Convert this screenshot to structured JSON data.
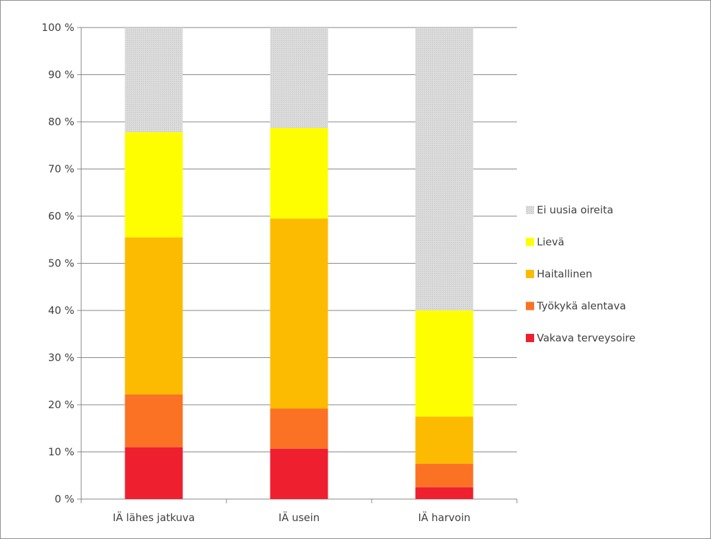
{
  "chart_data": {
    "type": "bar",
    "stacked": true,
    "percent": true,
    "categories": [
      "IÄ lähes jatkuva",
      "IÄ usein",
      "IÄ harvoin"
    ],
    "series": [
      {
        "name": "Vakava terveysoire",
        "color": "#ee2030",
        "values": [
          11.0,
          10.7,
          2.5
        ]
      },
      {
        "name": "Työkykä alentava",
        "color": "#fb7224",
        "values": [
          11.2,
          8.5,
          5.0
        ]
      },
      {
        "name": "Haitallinen",
        "color": "#fcbb00",
        "values": [
          33.3,
          40.3,
          10.0
        ]
      },
      {
        "name": "Lievä",
        "color": "#fefe00",
        "values": [
          22.3,
          19.2,
          22.5
        ]
      },
      {
        "name": "Ei uusia oireita",
        "color": "#d9d9d9",
        "values": [
          22.2,
          21.3,
          60.0
        ]
      }
    ],
    "ylim": [
      0,
      100
    ],
    "yticks": [
      "0 %",
      "10 %",
      "20 %",
      "30 %",
      "40 %",
      "50 %",
      "60 %",
      "70 %",
      "80 %",
      "90 %",
      "100 %"
    ],
    "grid": true,
    "legend_position": "right",
    "legend_order": [
      "Ei uusia oireita",
      "Lievä",
      "Haitallinen",
      "Työkykä alentava",
      "Vakava terveysoire"
    ]
  }
}
